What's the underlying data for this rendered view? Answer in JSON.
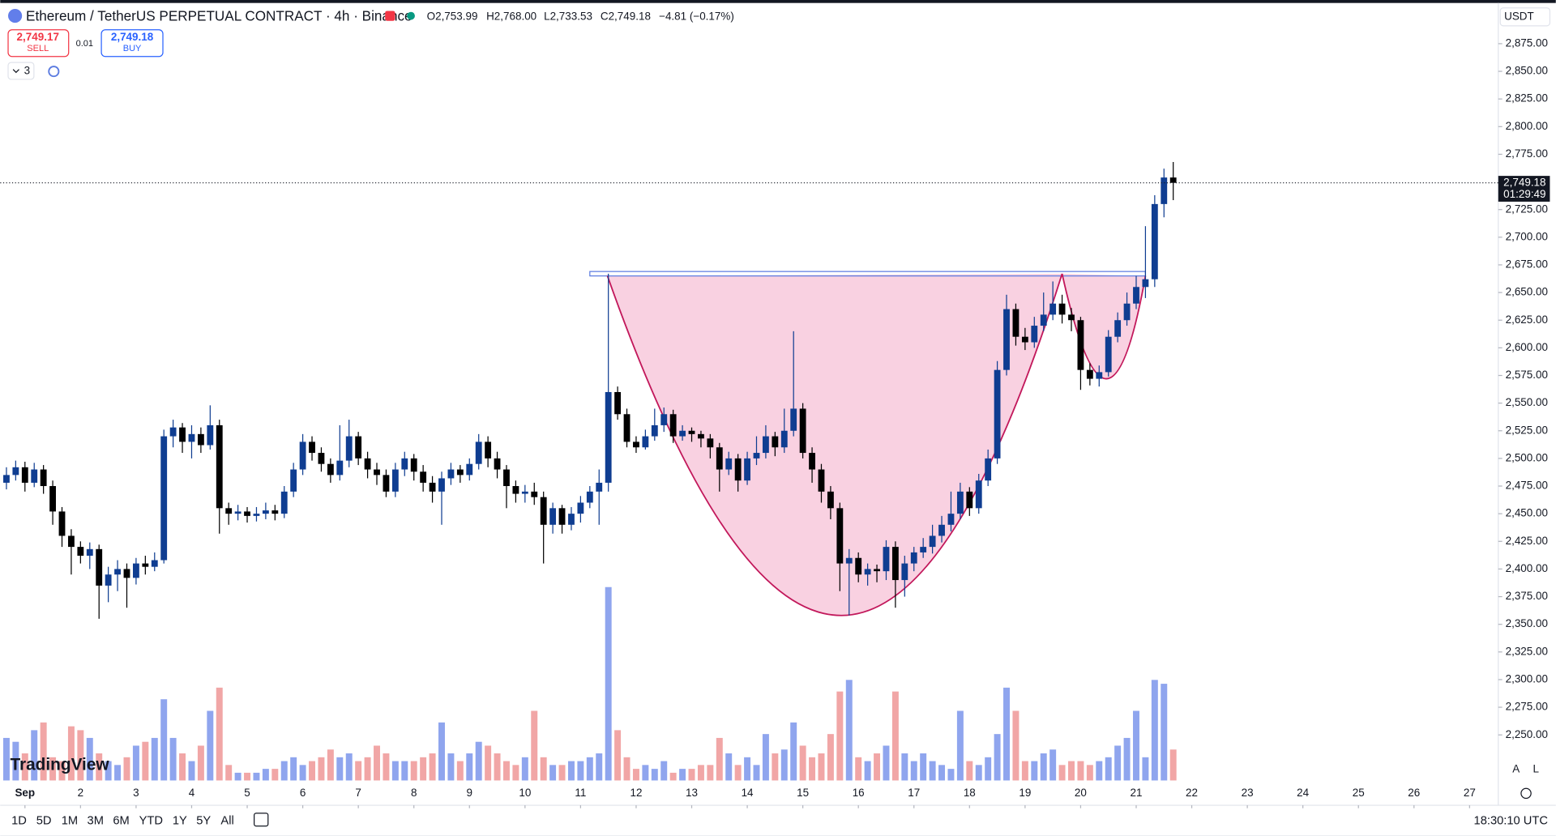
{
  "header": {
    "symbol": "Ethereum / TetherUS PERPETUAL CONTRACT · 4h · Binance",
    "ohlc": [
      "O2,753.99",
      "H2,768.00",
      "L2,733.53",
      "C2,749.18"
    ],
    "change": "−4.81 (−0.17%)",
    "sell_price": "2,749.17",
    "sell_label": "SELL",
    "spread": "0.01",
    "buy_price": "2,749.18",
    "buy_label": "BUY",
    "indicator_count": "3",
    "currency": "USDT"
  },
  "chart_data": {
    "type": "candlestick",
    "x": [
      -8,
      -4,
      0,
      4,
      8,
      12,
      16,
      20,
      24,
      28,
      32,
      36,
      40,
      44,
      48,
      52,
      56,
      60,
      64,
      68,
      72,
      76,
      80,
      84,
      88,
      92,
      96,
      100,
      104,
      108,
      112,
      116,
      120,
      124,
      128,
      132,
      136,
      140,
      144,
      148,
      152,
      156,
      160,
      164,
      168,
      172,
      176,
      180,
      184,
      188,
      192,
      196,
      200,
      204,
      208,
      212,
      216,
      220,
      224,
      228,
      232,
      236,
      240,
      244,
      248,
      252,
      256,
      260,
      264,
      268,
      272,
      276,
      280,
      284,
      288,
      292,
      296,
      300,
      304,
      308,
      312,
      316,
      320,
      324,
      328,
      332,
      336,
      340,
      344,
      348,
      352,
      356,
      360,
      364,
      368,
      372,
      376,
      380,
      384,
      388,
      392,
      396,
      400,
      404,
      408,
      412,
      416,
      420,
      424,
      428,
      432,
      436,
      440,
      444,
      448,
      452,
      456,
      460,
      464,
      468,
      472,
      476,
      480,
      484,
      488,
      492,
      496
    ],
    "open": [
      2478,
      2485,
      2492,
      2478,
      2490,
      2475,
      2452,
      2430,
      2420,
      2412,
      2418,
      2385,
      2395,
      2400,
      2392,
      2405,
      2402,
      2408,
      2520,
      2528,
      2515,
      2522,
      2512,
      2530,
      2455,
      2450,
      2452,
      2448,
      2450,
      2453,
      2450,
      2470,
      2490,
      2515,
      2505,
      2495,
      2485,
      2498,
      2520,
      2500,
      2490,
      2485,
      2470,
      2490,
      2500,
      2488,
      2478,
      2470,
      2482,
      2490,
      2485,
      2495,
      2515,
      2500,
      2490,
      2475,
      2468,
      2470,
      2465,
      2440,
      2455,
      2440,
      2450,
      2460,
      2470,
      2478,
      2560,
      2540,
      2515,
      2510,
      2520,
      2530,
      2540,
      2520,
      2525,
      2522,
      2518,
      2510,
      2490,
      2500,
      2480,
      2500,
      2505,
      2520,
      2510,
      2525,
      2545,
      2505,
      2490,
      2470,
      2455,
      2405,
      2410,
      2395,
      2400,
      2398,
      2420,
      2390,
      2405,
      2415,
      2420,
      2430,
      2440,
      2450,
      2470,
      2455,
      2480,
      2500,
      2580,
      2635,
      2610,
      2605,
      2620,
      2630,
      2640,
      2630,
      2625,
      2580,
      2572,
      2578,
      2610,
      2625,
      2640,
      2655,
      2662,
      2730,
      2753.99
    ],
    "high": [
      2492,
      2498,
      2497,
      2496,
      2494,
      2480,
      2456,
      2436,
      2425,
      2424,
      2422,
      2402,
      2408,
      2405,
      2410,
      2412,
      2415,
      2526,
      2535,
      2532,
      2530,
      2528,
      2548,
      2535,
      2460,
      2458,
      2456,
      2456,
      2460,
      2458,
      2475,
      2496,
      2522,
      2520,
      2510,
      2500,
      2530,
      2535,
      2524,
      2506,
      2496,
      2490,
      2496,
      2506,
      2504,
      2494,
      2484,
      2488,
      2496,
      2494,
      2500,
      2522,
      2520,
      2506,
      2494,
      2480,
      2476,
      2478,
      2470,
      2460,
      2458,
      2456,
      2466,
      2475,
      2490,
      2667,
      2565,
      2545,
      2520,
      2526,
      2545,
      2546,
      2544,
      2530,
      2528,
      2525,
      2522,
      2514,
      2506,
      2504,
      2506,
      2520,
      2530,
      2524,
      2545,
      2615,
      2550,
      2510,
      2495,
      2475,
      2460,
      2418,
      2415,
      2405,
      2404,
      2426,
      2425,
      2412,
      2420,
      2428,
      2440,
      2448,
      2470,
      2478,
      2474,
      2486,
      2508,
      2588,
      2648,
      2640,
      2618,
      2628,
      2650,
      2660,
      2648,
      2636,
      2628,
      2586,
      2584,
      2616,
      2632,
      2650,
      2665,
      2710,
      2738,
      2762,
      2768
    ],
    "low": [
      2472,
      2480,
      2470,
      2474,
      2468,
      2440,
      2420,
      2395,
      2405,
      2400,
      2355,
      2370,
      2380,
      2365,
      2386,
      2395,
      2398,
      2405,
      2510,
      2505,
      2500,
      2505,
      2508,
      2432,
      2440,
      2444,
      2442,
      2443,
      2445,
      2444,
      2446,
      2465,
      2485,
      2498,
      2488,
      2478,
      2480,
      2492,
      2494,
      2482,
      2476,
      2465,
      2465,
      2484,
      2480,
      2470,
      2460,
      2440,
      2476,
      2478,
      2480,
      2490,
      2492,
      2482,
      2455,
      2460,
      2460,
      2458,
      2405,
      2432,
      2432,
      2435,
      2442,
      2455,
      2440,
      2470,
      2535,
      2510,
      2505,
      2508,
      2516,
      2524,
      2514,
      2516,
      2515,
      2510,
      2500,
      2470,
      2485,
      2470,
      2476,
      2494,
      2500,
      2502,
      2505,
      2520,
      2500,
      2478,
      2460,
      2445,
      2380,
      2358,
      2388,
      2385,
      2388,
      2390,
      2365,
      2375,
      2398,
      2410,
      2414,
      2424,
      2434,
      2445,
      2448,
      2450,
      2475,
      2495,
      2575,
      2602,
      2598,
      2600,
      2615,
      2625,
      2622,
      2615,
      2562,
      2566,
      2565,
      2574,
      2605,
      2620,
      2635,
      2645,
      2655,
      2718,
      2733.53
    ],
    "close": [
      2485,
      2492,
      2478,
      2490,
      2475,
      2452,
      2430,
      2420,
      2412,
      2418,
      2385,
      2395,
      2400,
      2392,
      2405,
      2402,
      2408,
      2520,
      2528,
      2515,
      2522,
      2512,
      2530,
      2455,
      2450,
      2452,
      2448,
      2450,
      2453,
      2450,
      2470,
      2490,
      2515,
      2505,
      2495,
      2485,
      2498,
      2520,
      2500,
      2490,
      2485,
      2470,
      2490,
      2500,
      2488,
      2478,
      2470,
      2482,
      2490,
      2485,
      2495,
      2515,
      2500,
      2490,
      2475,
      2468,
      2470,
      2465,
      2440,
      2455,
      2440,
      2450,
      2460,
      2470,
      2478,
      2560,
      2540,
      2515,
      2510,
      2520,
      2530,
      2540,
      2520,
      2525,
      2522,
      2518,
      2510,
      2490,
      2500,
      2480,
      2500,
      2505,
      2520,
      2510,
      2525,
      2545,
      2505,
      2490,
      2470,
      2455,
      2405,
      2410,
      2395,
      2400,
      2398,
      2420,
      2390,
      2405,
      2415,
      2420,
      2430,
      2440,
      2450,
      2470,
      2455,
      2480,
      2500,
      2580,
      2635,
      2610,
      2605,
      2620,
      2630,
      2640,
      2630,
      2625,
      2580,
      2572,
      2578,
      2610,
      2625,
      2640,
      2655,
      2662,
      2730,
      2753.99,
      2749.18
    ],
    "volume": [
      22,
      20,
      14,
      26,
      30,
      12,
      10,
      28,
      26,
      22,
      14,
      10,
      8,
      12,
      18,
      20,
      22,
      42,
      22,
      14,
      10,
      18,
      36,
      48,
      8,
      4,
      4,
      4,
      6,
      6,
      10,
      12,
      8,
      10,
      12,
      16,
      12,
      14,
      10,
      12,
      18,
      14,
      10,
      10,
      10,
      12,
      14,
      30,
      14,
      10,
      14,
      20,
      18,
      14,
      10,
      8,
      12,
      36,
      12,
      8,
      8,
      10,
      10,
      12,
      14,
      100,
      26,
      12,
      6,
      8,
      6,
      10,
      4,
      6,
      6,
      8,
      8,
      22,
      14,
      8,
      12,
      8,
      24,
      14,
      16,
      30,
      18,
      12,
      14,
      24,
      46,
      52,
      12,
      10,
      14,
      18,
      46,
      14,
      10,
      14,
      10,
      8,
      6,
      36,
      10,
      8,
      12,
      24,
      48,
      36,
      10,
      10,
      14,
      16,
      8,
      10,
      10,
      8,
      10,
      12,
      18,
      22,
      36,
      12,
      52,
      50,
      16
    ],
    "up_color": "#0f3d91",
    "down_color": "#000000",
    "volume_up_color": "#8fa5ee",
    "volume_down_color": "#f1a6a6",
    "xlim": [
      -10.7,
      636.4
    ],
    "ylim": [
      2208.8,
      2911.8
    ],
    "xticks": [
      {
        "value": 0,
        "label": "Sep"
      },
      {
        "value": 24,
        "label": "2"
      },
      {
        "value": 48,
        "label": "3"
      },
      {
        "value": 72,
        "label": "4"
      },
      {
        "value": 96,
        "label": "5"
      },
      {
        "value": 120,
        "label": "6"
      },
      {
        "value": 144,
        "label": "7"
      },
      {
        "value": 168,
        "label": "8"
      },
      {
        "value": 192,
        "label": "9"
      },
      {
        "value": 216,
        "label": "10"
      },
      {
        "value": 240,
        "label": "11"
      },
      {
        "value": 264,
        "label": "12"
      },
      {
        "value": 288,
        "label": "13"
      },
      {
        "value": 312,
        "label": "14"
      },
      {
        "value": 336,
        "label": "15"
      },
      {
        "value": 360,
        "label": "16"
      },
      {
        "value": 384,
        "label": "17"
      },
      {
        "value": 408,
        "label": "18"
      },
      {
        "value": 432,
        "label": "19"
      },
      {
        "value": 456,
        "label": "20"
      },
      {
        "value": 480,
        "label": "21"
      },
      {
        "value": 504,
        "label": "22"
      },
      {
        "value": 528,
        "label": "23"
      },
      {
        "value": 552,
        "label": "24"
      },
      {
        "value": 576,
        "label": "25"
      },
      {
        "value": 600,
        "label": "26"
      },
      {
        "value": 624,
        "label": "27"
      }
    ],
    "yticks": [
      {
        "value": 2250,
        "label": "2,250.00"
      },
      {
        "value": 2275,
        "label": "2,275.00"
      },
      {
        "value": 2300,
        "label": "2,300.00"
      },
      {
        "value": 2325,
        "label": "2,325.00"
      },
      {
        "value": 2350,
        "label": "2,350.00"
      },
      {
        "value": 2375,
        "label": "2,375.00"
      },
      {
        "value": 2400,
        "label": "2,400.00"
      },
      {
        "value": 2425,
        "label": "2,425.00"
      },
      {
        "value": 2450,
        "label": "2,450.00"
      },
      {
        "value": 2475,
        "label": "2,475.00"
      },
      {
        "value": 2500,
        "label": "2,500.00"
      },
      {
        "value": 2525,
        "label": "2,525.00"
      },
      {
        "value": 2550,
        "label": "2,550.00"
      },
      {
        "value": 2575,
        "label": "2,575.00"
      },
      {
        "value": 2600,
        "label": "2,600.00"
      },
      {
        "value": 2625,
        "label": "2,625.00"
      },
      {
        "value": 2650,
        "label": "2,650.00"
      },
      {
        "value": 2675,
        "label": "2,675.00"
      },
      {
        "value": 2700,
        "label": "2,700.00"
      },
      {
        "value": 2725,
        "label": "2,725.00"
      },
      {
        "value": 2750,
        "label": "2,750.00"
      },
      {
        "value": 2775,
        "label": "2,775.00"
      },
      {
        "value": 2800,
        "label": "2,800.00"
      },
      {
        "value": 2825,
        "label": "2,825.00"
      },
      {
        "value": 2850,
        "label": "2,850.00"
      },
      {
        "value": 2875,
        "label": "2,875.00"
      }
    ],
    "last_price": {
      "value": 2749.18,
      "label": "2,749.18"
    },
    "countdown": "01:29:49",
    "pattern": {
      "color": "#c2185b",
      "fill": "#f7c6d9",
      "rim_x": [
        244,
        484
      ],
      "rim_y": [
        2665,
        2669
      ],
      "cup_x": [
        251.6,
        352.7,
        448
      ],
      "cup_y": [
        2665,
        2358,
        2667
      ],
      "handle_x": [
        448,
        467,
        484
      ],
      "handle_y": [
        2667,
        2572,
        2665
      ]
    }
  },
  "toolbar": {
    "ranges": [
      "1D",
      "5D",
      "1M",
      "3M",
      "6M",
      "YTD",
      "1Y",
      "5Y",
      "All"
    ],
    "clock": "18:30:10 UTC"
  },
  "logo": "TradingView",
  "axis_buttons": [
    "A",
    "L"
  ]
}
